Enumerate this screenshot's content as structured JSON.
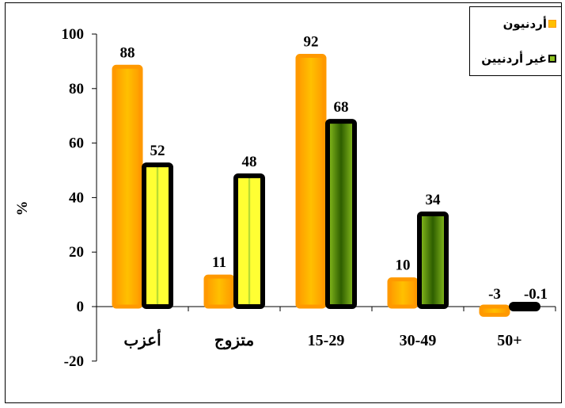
{
  "colors": {
    "series1_fill": "#FFC000",
    "series1_edge": "#FF9900",
    "series2_dark": "#2E5E00",
    "series2_light": "#FFFF33",
    "series2_green": "#8DC21F",
    "border": "#000000"
  },
  "chart_data": {
    "type": "bar",
    "categories": [
      "أعزب",
      "متزوج",
      "15-29",
      "30-49",
      "50+"
    ],
    "series": [
      {
        "name": "أردنيون",
        "values": [
          88,
          11,
          92,
          10,
          -3
        ],
        "labels": [
          "88",
          "11",
          "92",
          "10",
          "-3"
        ]
      },
      {
        "name": "غير أردنيين",
        "values": [
          52,
          48,
          68,
          34,
          -0.1
        ],
        "labels": [
          "52",
          "48",
          "68",
          "34",
          "-0.1"
        ]
      }
    ],
    "ylabel": "%",
    "ylim": [
      -20,
      100
    ],
    "yticks": [
      100,
      80,
      60,
      40,
      20,
      0,
      -20
    ],
    "ytick_labels": [
      "100",
      "80",
      "60",
      "40",
      "20",
      "0",
      "-20"
    ],
    "grid": false,
    "legend_position": "top-right"
  }
}
